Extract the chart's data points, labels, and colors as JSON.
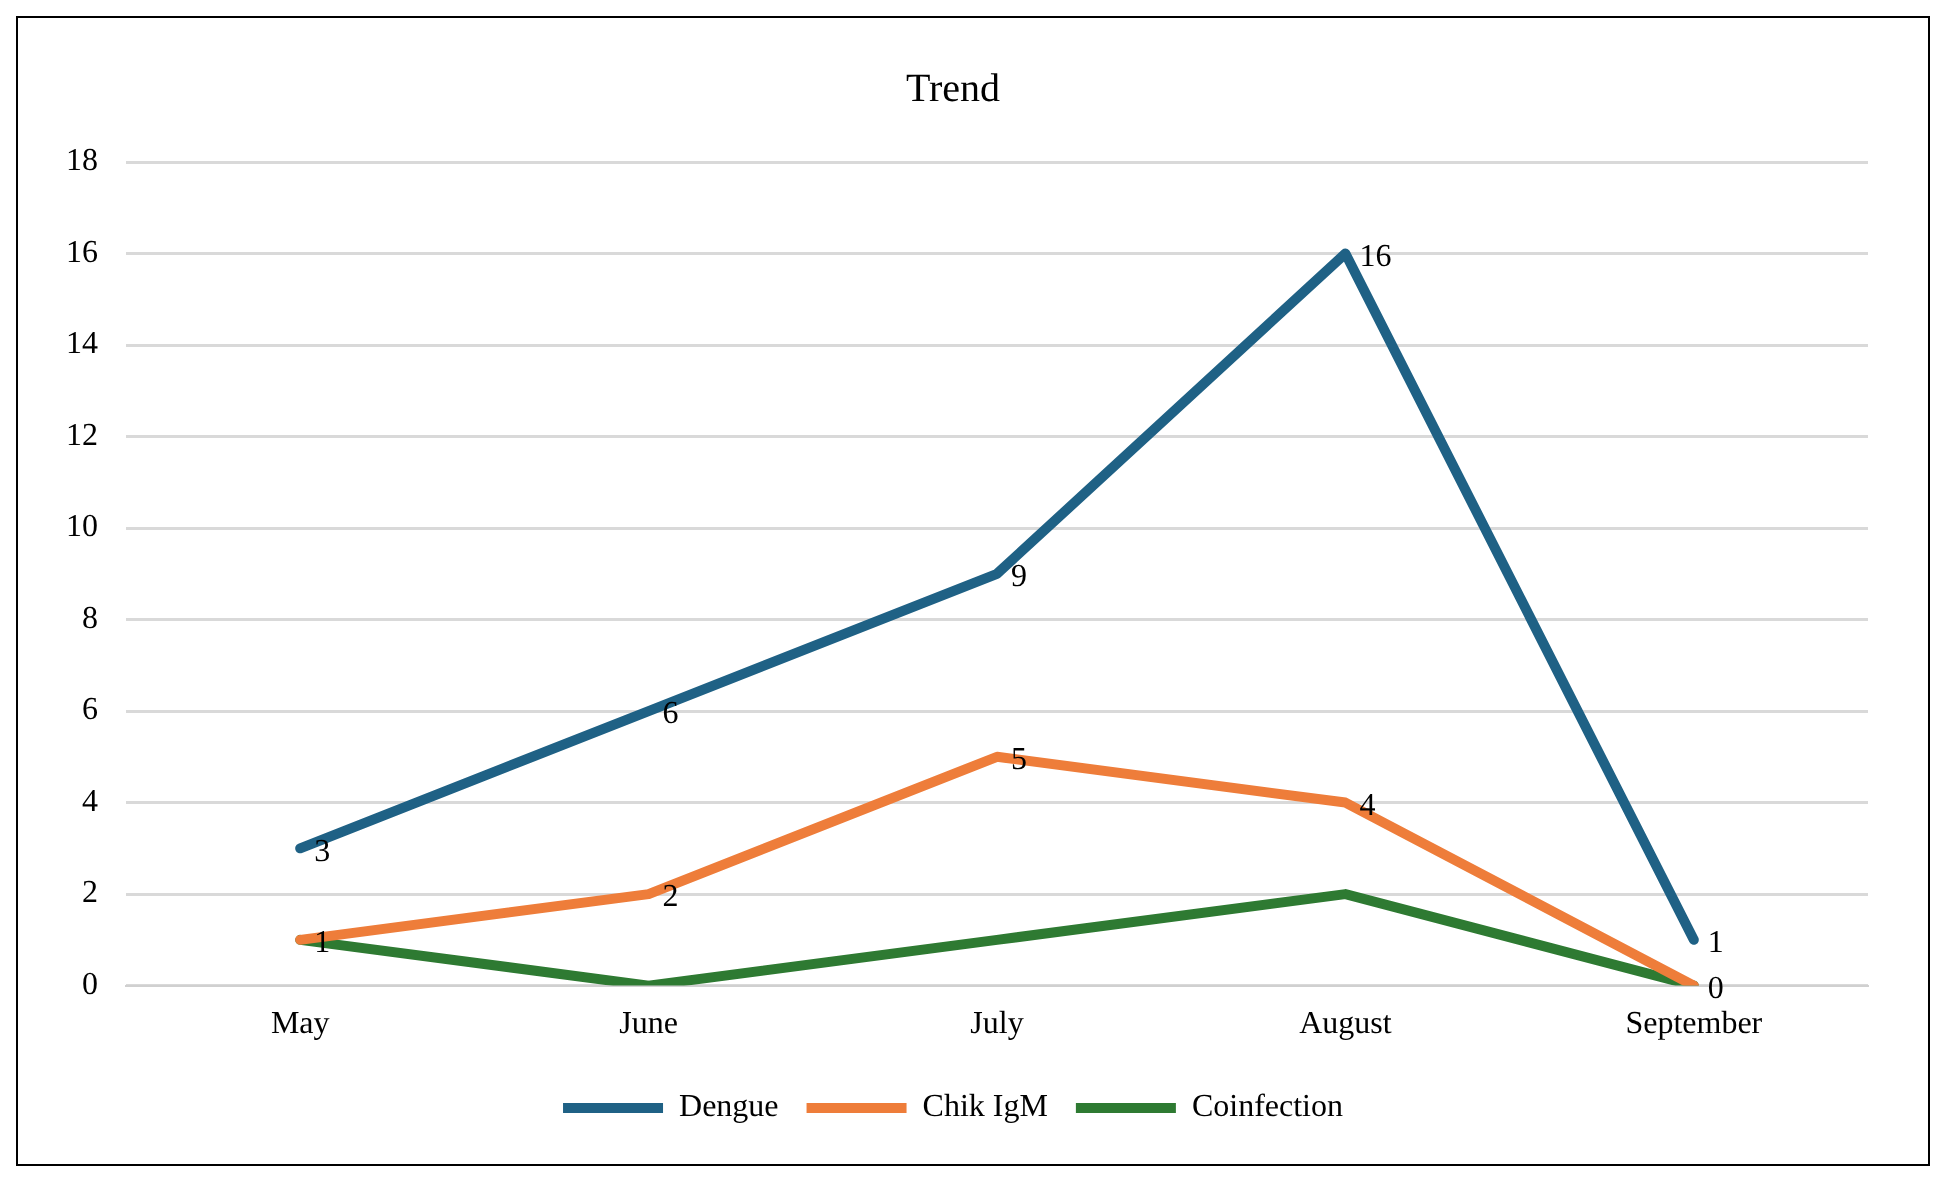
{
  "chart_data": {
    "type": "line",
    "title": "Trend",
    "categories": [
      "May",
      "June",
      "July",
      "August",
      "September"
    ],
    "series": [
      {
        "name": "Dengue",
        "color": "#1f6185",
        "values": [
          3,
          6,
          9,
          16,
          1
        ],
        "value_labels": [
          "3",
          "6",
          "9",
          "16",
          "1"
        ]
      },
      {
        "name": "Chik IgM",
        "color": "#ee7d3a",
        "values": [
          1,
          2,
          5,
          4,
          0
        ],
        "value_labels": [
          "1",
          "2",
          "5",
          "4",
          "0"
        ]
      },
      {
        "name": "Coinfection",
        "color": "#2e7a32",
        "values": [
          1,
          0,
          1,
          2,
          0
        ]
      }
    ],
    "ylim": [
      0,
      18
    ],
    "yticks": [
      0,
      2,
      4,
      6,
      8,
      10,
      12,
      14,
      16,
      18
    ],
    "grid": "y",
    "legend": "bottom"
  }
}
